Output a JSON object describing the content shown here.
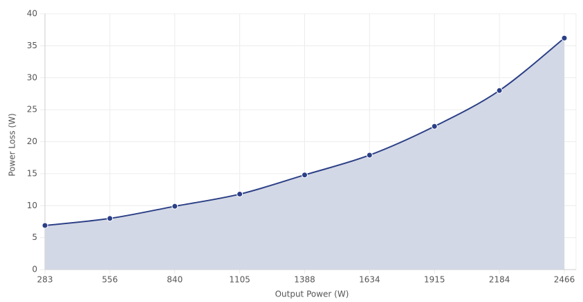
{
  "chart_data": {
    "type": "area",
    "x_label": "Output Power (W)",
    "y_label": "Power Loss (W)",
    "categories": [
      "283",
      "556",
      "840",
      "1105",
      "1388",
      "1634",
      "1915",
      "2184",
      "2466"
    ],
    "values": [
      6.9,
      8,
      9.9,
      11.8,
      14.8,
      17.9,
      22.4,
      28,
      36.2
    ],
    "color": "#2b3f86",
    "fill": "#d3d8e6",
    "ylim": [
      0,
      40
    ],
    "yticks": [
      0,
      5,
      10,
      15,
      20,
      25,
      30,
      35,
      40
    ],
    "grid": true
  }
}
